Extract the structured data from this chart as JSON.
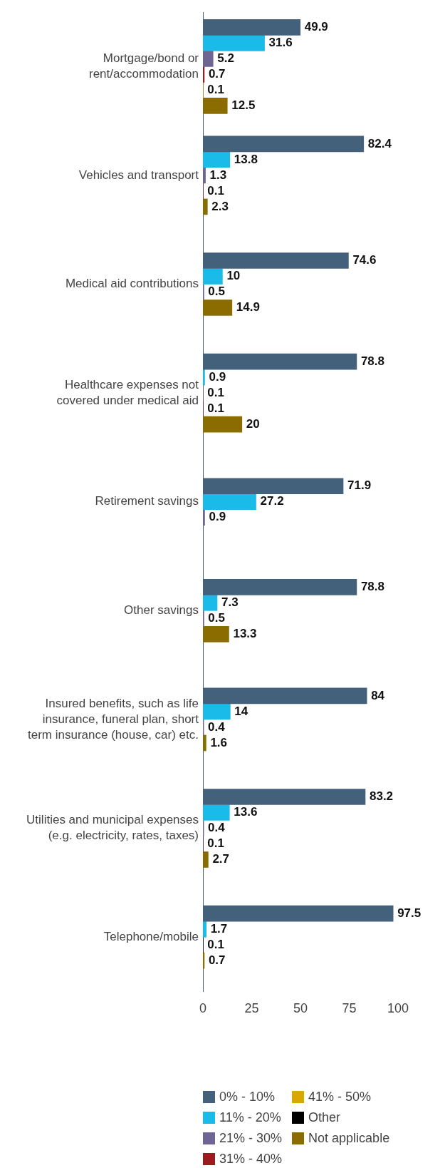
{
  "chart_data": {
    "type": "bar",
    "orientation": "horizontal",
    "categories": [
      "Mortgage/bond or rent/accommodation",
      "Vehicles and transport",
      "Medical aid contributions",
      "Healthcare expenses not covered under medical aid",
      "Retirement savings",
      "Other savings",
      "Insured benefits, such as life insurance, funeral plan, short term insurance (house, car) etc.",
      "Utilities and municipal expenses (e.g. electricity, rates, taxes)",
      "Telephone/mobile"
    ],
    "series": [
      {
        "name": "0% - 10%",
        "color": "#44617b",
        "values": [
          49.9,
          82.4,
          74.6,
          78.8,
          71.9,
          78.8,
          84,
          83.2,
          97.5
        ]
      },
      {
        "name": "11% - 20%",
        "color": "#1bbbe9",
        "values": [
          31.6,
          13.8,
          10,
          0.9,
          27.2,
          7.3,
          14,
          13.6,
          1.7
        ]
      },
      {
        "name": "21% - 30%",
        "color": "#6e6595",
        "values": [
          5.2,
          1.3,
          0.5,
          0.1,
          0.9,
          0.5,
          0.4,
          0.4,
          null
        ]
      },
      {
        "name": "31% - 40%",
        "color": "#9b1b1f",
        "values": [
          0.7,
          0.1,
          null,
          0.1,
          null,
          null,
          null,
          0.1,
          null
        ]
      },
      {
        "name": "41% - 50%",
        "color": "#d9a800",
        "values": [
          0.1,
          null,
          null,
          null,
          null,
          null,
          null,
          null,
          null
        ]
      },
      {
        "name": "Other",
        "color": "#000000",
        "values": [
          null,
          null,
          null,
          null,
          null,
          null,
          null,
          null,
          0.1
        ]
      },
      {
        "name": "Not applicable",
        "color": "#8b6c00",
        "values": [
          12.5,
          2.3,
          14.9,
          20,
          null,
          13.3,
          1.6,
          2.7,
          0.7
        ]
      }
    ],
    "xlim": [
      0,
      100
    ],
    "xticks": [
      0,
      25,
      50,
      75,
      100
    ],
    "grid": false,
    "legend": "bottom",
    "data_labels": true
  }
}
